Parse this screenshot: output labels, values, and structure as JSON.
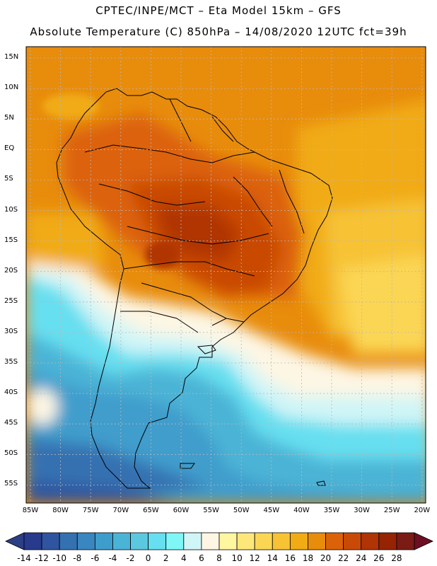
{
  "header": {
    "line1": "CPTEC/INPE/MCT –  Eta Model 15km – GFS",
    "line2": "Absolute Temperature (C) 850hPa – 14/08/2020 12UTC fct=39h"
  },
  "map": {
    "lat_labels": [
      "15N",
      "10N",
      "5N",
      "EQ",
      "5S",
      "10S",
      "15S",
      "20S",
      "25S",
      "30S",
      "35S",
      "40S",
      "45S",
      "50S",
      "55S"
    ],
    "lon_labels": [
      "85W",
      "80W",
      "75W",
      "70W",
      "65W",
      "60W",
      "55W",
      "50W",
      "45W",
      "40W",
      "35W",
      "30W",
      "25W",
      "20W"
    ],
    "colorbar": {
      "ticks": [
        "-14",
        "-12",
        "-10",
        "-8",
        "-6",
        "-4",
        "-2",
        "0",
        "2",
        "4",
        "6",
        "8",
        "10",
        "12",
        "14",
        "16",
        "18",
        "20",
        "22",
        "24",
        "26",
        "28"
      ],
      "colors": [
        "#283a8c",
        "#2f55a0",
        "#3471b1",
        "#3a86c0",
        "#3f9dcc",
        "#4bb4d6",
        "#5cc8e0",
        "#66dff0",
        "#7ff7f7",
        "#d0f5f7",
        "#fdf6e4",
        "#fef6a0",
        "#fde77a",
        "#fbd655",
        "#f7c335",
        "#f1ab14",
        "#e88c0c",
        "#dc620a",
        "#c94a06",
        "#b03405",
        "#962303",
        "#7a1b16"
      ],
      "under_color": "#2b3f86",
      "over_color": "#6d0e22"
    }
  }
}
